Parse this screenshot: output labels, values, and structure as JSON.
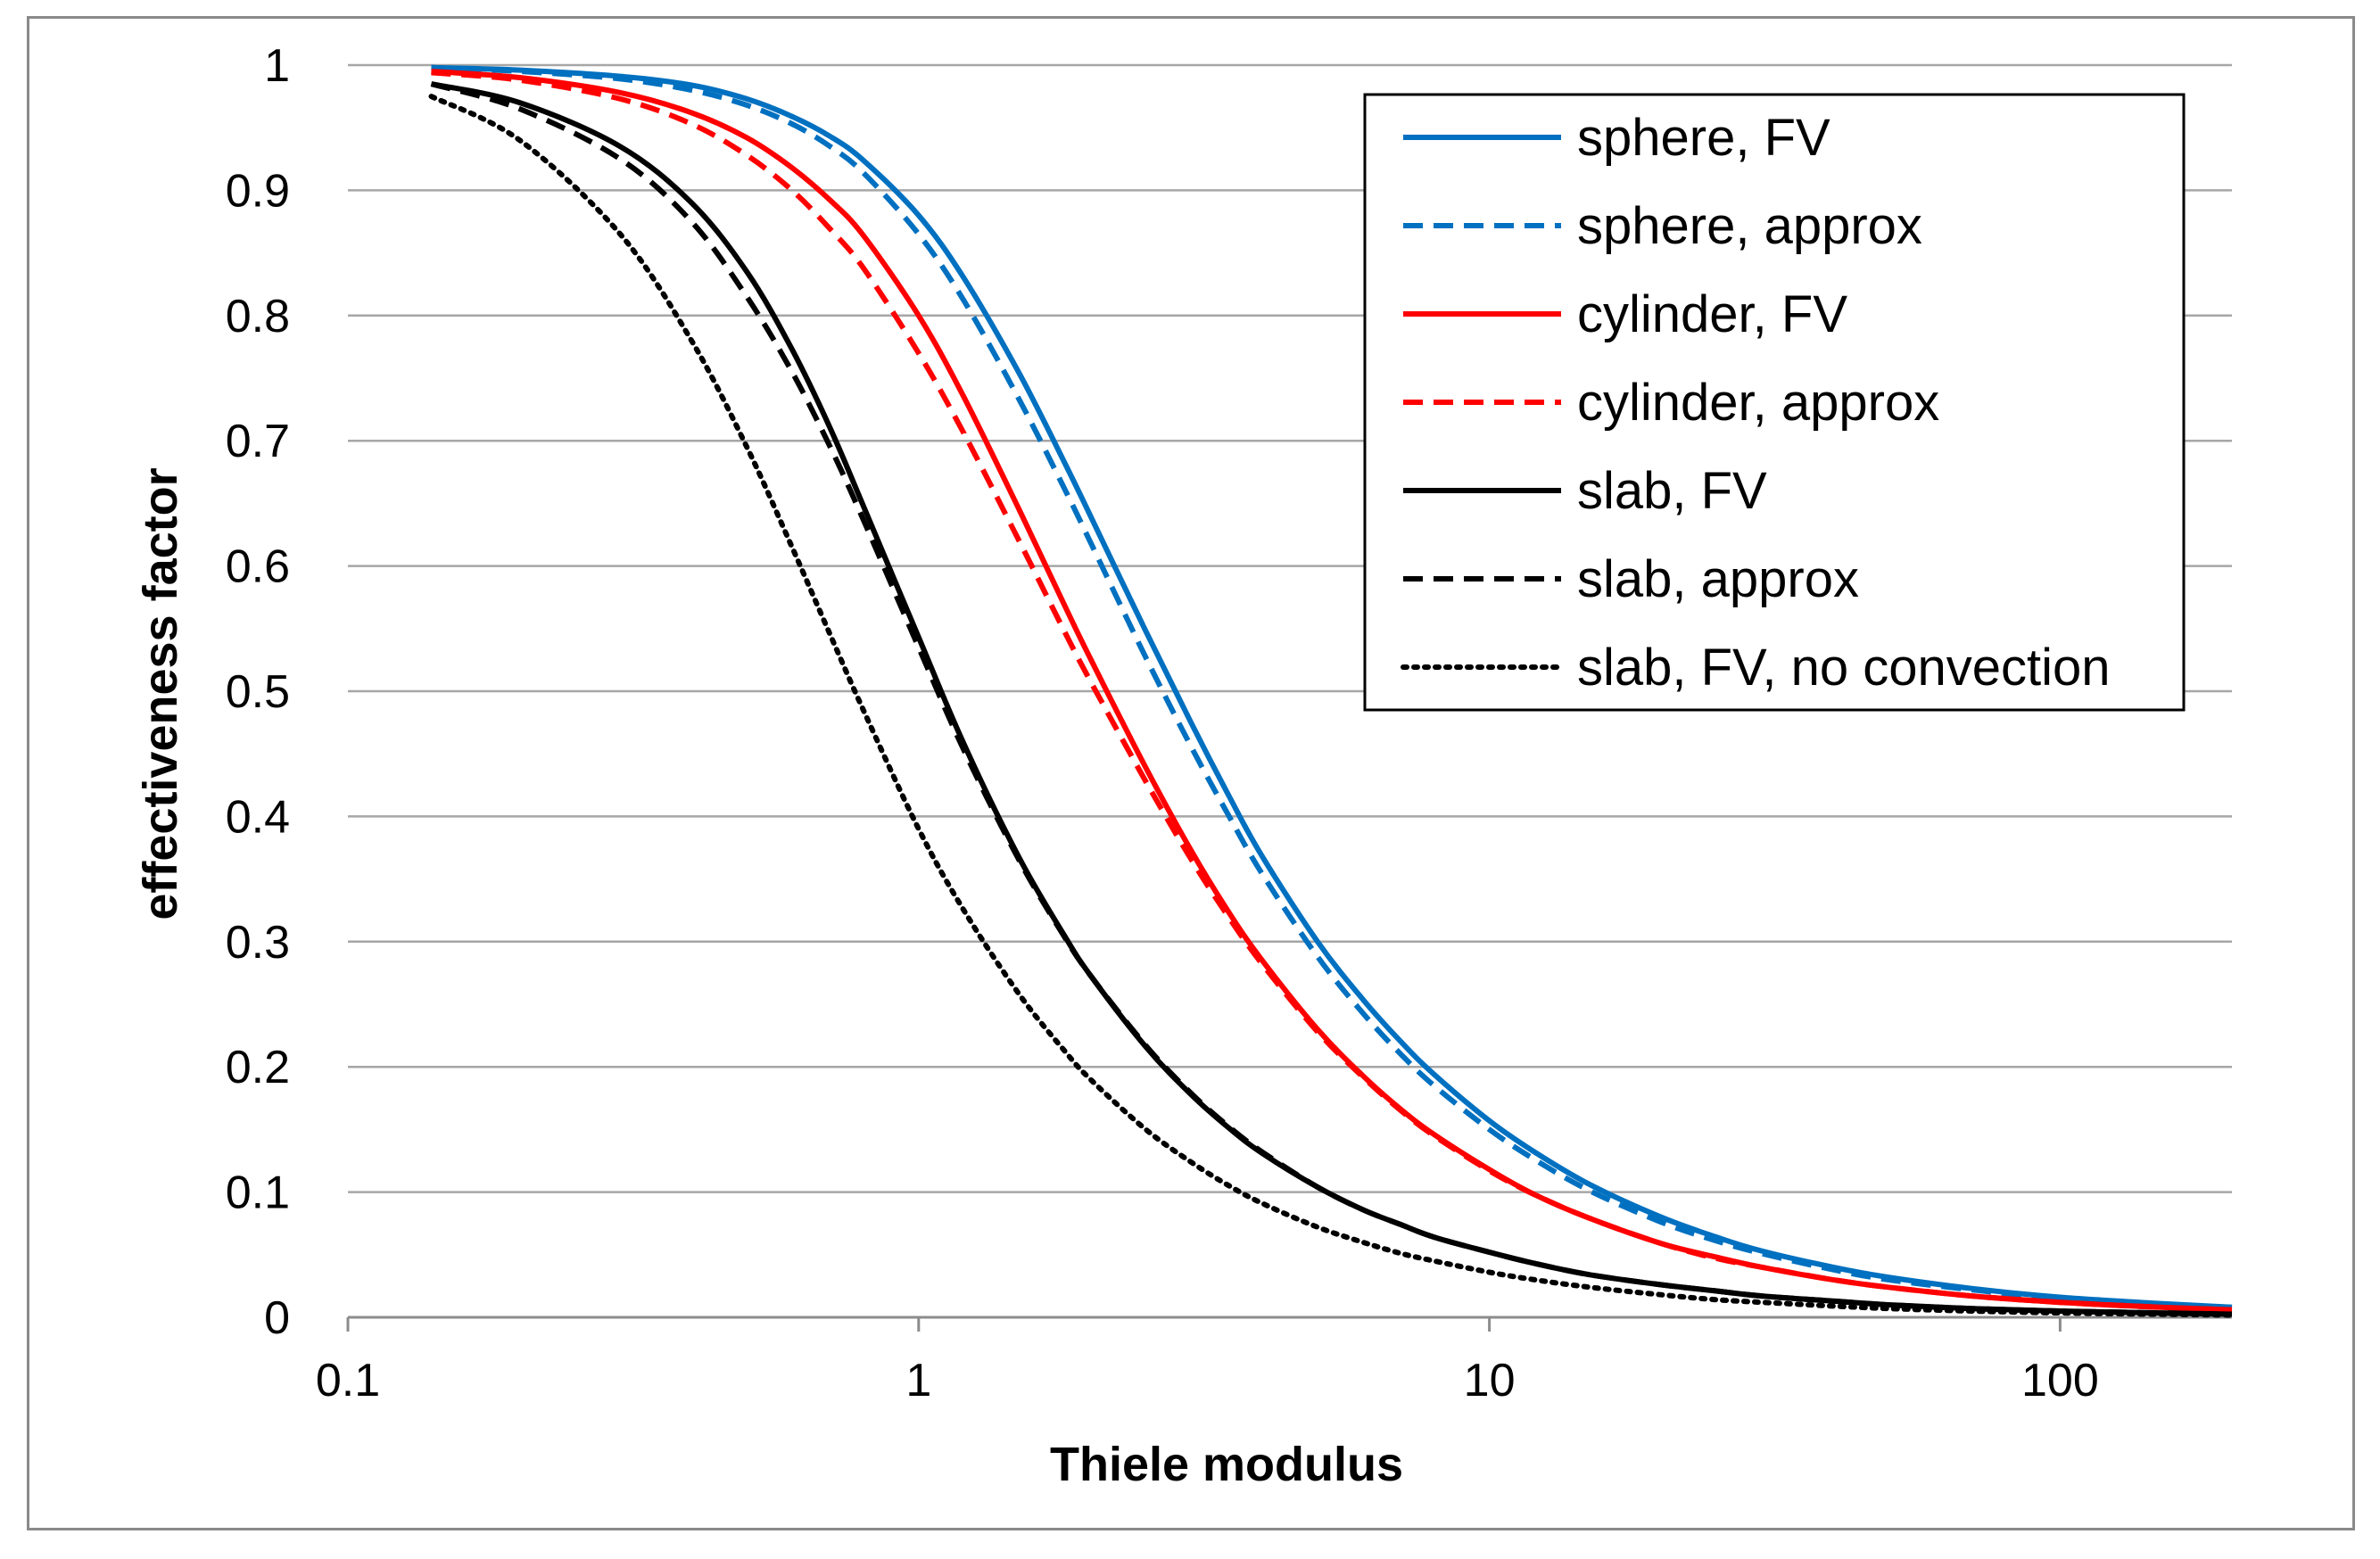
{
  "chart_data": {
    "type": "line",
    "title": "",
    "xlabel": "Thiele modulus",
    "ylabel": "effectiveness factor",
    "xscale": "log",
    "xlim": [
      0.1,
      200
    ],
    "ylim": [
      0,
      1
    ],
    "x_ticks": [
      {
        "value": 0.1,
        "label": "0.1"
      },
      {
        "value": 1,
        "label": "1"
      },
      {
        "value": 10,
        "label": "10"
      },
      {
        "value": 100,
        "label": "100"
      }
    ],
    "y_ticks": [
      {
        "value": 0,
        "label": "0"
      },
      {
        "value": 0.1,
        "label": "0.1"
      },
      {
        "value": 0.2,
        "label": "0.2"
      },
      {
        "value": 0.3,
        "label": "0.3"
      },
      {
        "value": 0.4,
        "label": "0.4"
      },
      {
        "value": 0.5,
        "label": "0.5"
      },
      {
        "value": 0.6,
        "label": "0.6"
      },
      {
        "value": 0.7,
        "label": "0.7"
      },
      {
        "value": 0.8,
        "label": "0.8"
      },
      {
        "value": 0.9,
        "label": "0.9"
      },
      {
        "value": 1,
        "label": "1"
      }
    ],
    "grid": "horizontal",
    "legend_position": "top-right",
    "x": [
      0.14,
      0.2,
      0.3,
      0.4,
      0.5,
      0.6,
      0.7,
      0.8,
      1,
      1.2,
      1.5,
      1.8,
      2,
      2.5,
      3,
      3.5,
      4,
      5,
      6,
      7,
      8,
      10,
      12,
      15,
      20,
      25,
      30,
      40,
      50,
      70,
      100,
      150,
      200
    ],
    "series": [
      {
        "name": "sphere, FV",
        "color": "#0070C0",
        "dash": "solid",
        "values": [
          0.998,
          0.996,
          0.991,
          0.984,
          0.973,
          0.959,
          0.943,
          0.924,
          0.88,
          0.83,
          0.754,
          0.683,
          0.64,
          0.548,
          0.475,
          0.416,
          0.368,
          0.3,
          0.254,
          0.22,
          0.194,
          0.157,
          0.132,
          0.106,
          0.08,
          0.064,
          0.053,
          0.04,
          0.032,
          0.023,
          0.016,
          0.011,
          0.008
        ]
      },
      {
        "name": "sphere, approx",
        "color": "#0070C0",
        "dash": "dashed",
        "values": [
          0.998,
          0.995,
          0.989,
          0.98,
          0.968,
          0.953,
          0.935,
          0.914,
          0.865,
          0.812,
          0.733,
          0.662,
          0.619,
          0.527,
          0.456,
          0.4,
          0.354,
          0.288,
          0.243,
          0.21,
          0.185,
          0.15,
          0.126,
          0.101,
          0.076,
          0.061,
          0.051,
          0.038,
          0.03,
          0.022,
          0.015,
          0.01,
          0.008
        ]
      },
      {
        "name": "cylinder, FV",
        "color": "#FF0000",
        "dash": "solid",
        "values": [
          0.995,
          0.99,
          0.978,
          0.962,
          0.942,
          0.918,
          0.892,
          0.864,
          0.8,
          0.735,
          0.645,
          0.569,
          0.526,
          0.439,
          0.373,
          0.323,
          0.285,
          0.23,
          0.193,
          0.166,
          0.146,
          0.118,
          0.098,
          0.079,
          0.059,
          0.048,
          0.04,
          0.03,
          0.024,
          0.017,
          0.012,
          0.008,
          0.006
        ]
      },
      {
        "name": "cylinder, approx",
        "color": "#FF0000",
        "dash": "dashed",
        "values": [
          0.994,
          0.988,
          0.973,
          0.953,
          0.928,
          0.9,
          0.869,
          0.838,
          0.77,
          0.706,
          0.62,
          0.548,
          0.508,
          0.428,
          0.366,
          0.319,
          0.282,
          0.228,
          0.192,
          0.165,
          0.145,
          0.117,
          0.098,
          0.079,
          0.059,
          0.047,
          0.04,
          0.03,
          0.024,
          0.017,
          0.012,
          0.008,
          0.006
        ]
      },
      {
        "name": "slab, FV",
        "color": "#000000",
        "dash": "solid",
        "values": [
          0.985,
          0.97,
          0.935,
          0.89,
          0.835,
          0.773,
          0.71,
          0.648,
          0.543,
          0.458,
          0.367,
          0.305,
          0.273,
          0.216,
          0.178,
          0.151,
          0.131,
          0.104,
          0.086,
          0.074,
          0.064,
          0.052,
          0.043,
          0.034,
          0.026,
          0.021,
          0.017,
          0.013,
          0.01,
          0.007,
          0.005,
          0.0035,
          0.0025
        ]
      },
      {
        "name": "slab, approx",
        "color": "#000000",
        "dash": "dashed",
        "values": [
          0.985,
          0.965,
          0.925,
          0.875,
          0.815,
          0.755,
          0.695,
          0.637,
          0.535,
          0.453,
          0.365,
          0.304,
          0.273,
          0.217,
          0.179,
          0.152,
          0.132,
          0.104,
          0.086,
          0.074,
          0.064,
          0.052,
          0.043,
          0.034,
          0.026,
          0.021,
          0.017,
          0.013,
          0.01,
          0.007,
          0.005,
          0.0035,
          0.0025
        ]
      },
      {
        "name": "slab, FV, no convection",
        "color": "#000000",
        "dash": "dotted",
        "values": [
          0.975,
          0.94,
          0.865,
          0.78,
          0.695,
          0.615,
          0.545,
          0.485,
          0.39,
          0.325,
          0.258,
          0.213,
          0.19,
          0.15,
          0.124,
          0.105,
          0.091,
          0.072,
          0.06,
          0.051,
          0.045,
          0.036,
          0.03,
          0.024,
          0.018,
          0.014,
          0.012,
          0.009,
          0.007,
          0.005,
          0.0035,
          0.0024,
          0.0018
        ]
      }
    ]
  }
}
